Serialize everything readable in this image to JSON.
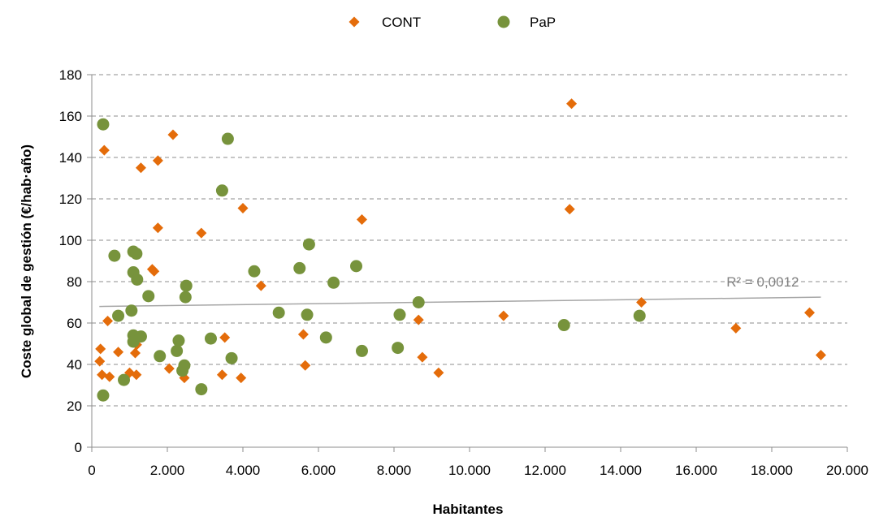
{
  "chart_data": {
    "type": "scatter",
    "xlabel": "Habitantes",
    "ylabel": "Coste global de gestión (€/hab·año)",
    "xlim": [
      0,
      20000
    ],
    "ylim": [
      0,
      180
    ],
    "x_ticks": [
      0,
      2000,
      4000,
      6000,
      8000,
      10000,
      12000,
      14000,
      16000,
      18000,
      20000
    ],
    "x_tick_labels": [
      "0",
      "2.000",
      "4.000",
      "6.000",
      "8.000",
      "10.000",
      "12.000",
      "14.000",
      "16.000",
      "18.000",
      "20.000"
    ],
    "y_ticks": [
      0,
      20,
      40,
      60,
      80,
      100,
      120,
      140,
      160,
      180
    ],
    "y_tick_labels": [
      "0",
      "20",
      "40",
      "60",
      "80",
      "100",
      "120",
      "140",
      "160",
      "180"
    ],
    "grid": "horizontal dashed",
    "legend_position": "top",
    "series": [
      {
        "name": "CONT",
        "marker": "diamond",
        "color": "#E46C0A",
        "points": [
          [
            210,
            41.5
          ],
          [
            230,
            47.5
          ],
          [
            270,
            35
          ],
          [
            330,
            143.5
          ],
          [
            420,
            61
          ],
          [
            470,
            34
          ],
          [
            700,
            46
          ],
          [
            1000,
            36
          ],
          [
            1150,
            45.5
          ],
          [
            1180,
            35
          ],
          [
            1190,
            49.5
          ],
          [
            1300,
            135
          ],
          [
            1600,
            86
          ],
          [
            1650,
            85
          ],
          [
            1750,
            106
          ],
          [
            1750,
            138.5
          ],
          [
            2050,
            38
          ],
          [
            2150,
            151
          ],
          [
            2450,
            33.5
          ],
          [
            2900,
            103.5
          ],
          [
            3450,
            35
          ],
          [
            3520,
            53
          ],
          [
            3950,
            33.5
          ],
          [
            4000,
            115.5
          ],
          [
            4480,
            78
          ],
          [
            5600,
            54.5
          ],
          [
            5650,
            39.5
          ],
          [
            7150,
            110
          ],
          [
            8650,
            61.5
          ],
          [
            8750,
            43.5
          ],
          [
            9180,
            36
          ],
          [
            10900,
            63.5
          ],
          [
            12650,
            115
          ],
          [
            12700,
            166
          ],
          [
            14550,
            70
          ],
          [
            17050,
            57.5
          ],
          [
            19000,
            65
          ],
          [
            19300,
            44.5
          ]
        ]
      },
      {
        "name": "PaP",
        "marker": "circle",
        "color": "#77933C",
        "points": [
          [
            300,
            156
          ],
          [
            300,
            25
          ],
          [
            600,
            92.5
          ],
          [
            700,
            63.5
          ],
          [
            850,
            32.5
          ],
          [
            1050,
            66
          ],
          [
            1100,
            94.5
          ],
          [
            1100,
            84.5
          ],
          [
            1100,
            54
          ],
          [
            1100,
            51
          ],
          [
            1180,
            93.5
          ],
          [
            1200,
            81
          ],
          [
            1300,
            53.5
          ],
          [
            1500,
            73
          ],
          [
            1800,
            44
          ],
          [
            2250,
            46.5
          ],
          [
            2300,
            51.5
          ],
          [
            2400,
            37
          ],
          [
            2450,
            39.5
          ],
          [
            2480,
            72.5
          ],
          [
            2500,
            78
          ],
          [
            2900,
            28
          ],
          [
            3150,
            52.5
          ],
          [
            3450,
            124
          ],
          [
            3600,
            149
          ],
          [
            3700,
            43
          ],
          [
            4300,
            85
          ],
          [
            4950,
            65
          ],
          [
            5500,
            86.5
          ],
          [
            5700,
            64
          ],
          [
            5750,
            98
          ],
          [
            6200,
            53
          ],
          [
            6400,
            79.5
          ],
          [
            7000,
            87.5
          ],
          [
            7150,
            46.5
          ],
          [
            8100,
            48
          ],
          [
            8150,
            64
          ],
          [
            8650,
            70
          ],
          [
            12500,
            59
          ],
          [
            14500,
            63.5
          ]
        ]
      }
    ],
    "trendline": {
      "type": "linear",
      "x_start": 200,
      "y_start": 68,
      "x_end": 19300,
      "y_end": 72.5,
      "color": "#A6A6A6",
      "label": "R² = 0,0012",
      "label_color": "#808080",
      "label_x": 16800,
      "label_y": 80
    }
  }
}
